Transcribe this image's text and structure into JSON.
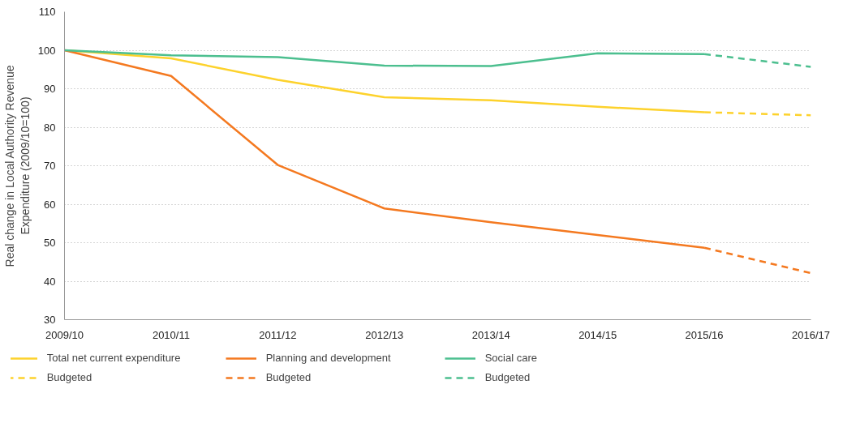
{
  "chart_data": {
    "type": "line",
    "ylabel": "Real change in Local Authority Revenue\nExpenditure (2009/10=100)",
    "categories": [
      "2009/10",
      "2010/11",
      "2011/12",
      "2012/13",
      "2013/14",
      "2014/15",
      "2015/16",
      "2016/17"
    ],
    "ylim": [
      30,
      110
    ],
    "yticks": [
      30,
      40,
      50,
      60,
      70,
      80,
      90,
      100,
      110
    ],
    "grid": "y",
    "legend": "bottom",
    "series": [
      {
        "name": "Total net current expenditure",
        "color": "#fdd22c",
        "line_style": "solid",
        "values": [
          100,
          97.9,
          92.3,
          87.8,
          87.0,
          85.3,
          83.9,
          null
        ]
      },
      {
        "name": "Planning and development",
        "color": "#f47920",
        "line_style": "solid",
        "values": [
          100,
          93.3,
          70.2,
          58.9,
          55.3,
          52.0,
          48.7,
          null
        ]
      },
      {
        "name": "Social care",
        "color": "#4cbf8f",
        "line_style": "solid",
        "values": [
          100,
          98.7,
          98.2,
          96.0,
          95.9,
          99.2,
          99.0,
          null
        ]
      },
      {
        "name": "Budgeted",
        "color": "#fdd22c",
        "line_style": "dashed",
        "values": [
          null,
          null,
          null,
          null,
          null,
          null,
          83.9,
          83.1
        ]
      },
      {
        "name": "Budgeted",
        "color": "#f47920",
        "line_style": "dashed",
        "values": [
          null,
          null,
          null,
          null,
          null,
          null,
          48.7,
          42.1
        ]
      },
      {
        "name": "Budgeted",
        "color": "#4cbf8f",
        "line_style": "dashed",
        "values": [
          null,
          null,
          null,
          null,
          null,
          null,
          99.0,
          95.7
        ]
      }
    ]
  }
}
